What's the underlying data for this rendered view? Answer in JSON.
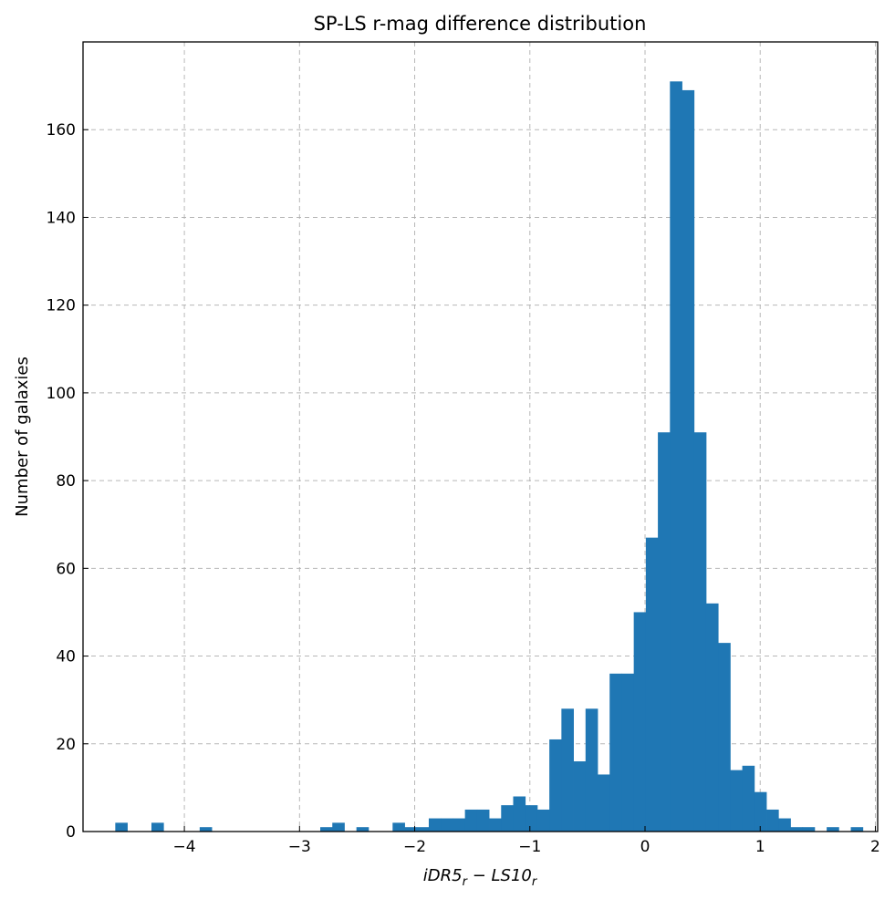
{
  "chart_data": {
    "type": "bar",
    "title": "SP-LS r-mag difference distribution",
    "xlabel": "iDR5_r − LS10_r",
    "xlabel_parts": {
      "a": "iDR5",
      "a_sub": "r",
      "op": " − ",
      "b": "LS10",
      "b_sub": "r"
    },
    "ylabel": "Number of galaxies",
    "xlim": [
      -4.88,
      2.02
    ],
    "ylim": [
      0,
      180
    ],
    "xticks": [
      -4,
      -3,
      -2,
      -1,
      0,
      1,
      2
    ],
    "xtick_labels": [
      "−4",
      "−3",
      "−2",
      "−1",
      "0",
      "1",
      "2"
    ],
    "yticks": [
      0,
      20,
      40,
      60,
      80,
      100,
      120,
      140,
      160
    ],
    "ytick_labels": [
      "0",
      "20",
      "40",
      "60",
      "80",
      "100",
      "120",
      "140",
      "160"
    ],
    "grid": true,
    "bin_start": -4.6,
    "bin_width": 0.1047,
    "counts": [
      2,
      0,
      0,
      2,
      0,
      0,
      0,
      1,
      0,
      0,
      0,
      0,
      0,
      0,
      0,
      0,
      0,
      1,
      2,
      0,
      1,
      0,
      0,
      2,
      1,
      1,
      3,
      3,
      3,
      5,
      5,
      3,
      6,
      8,
      6,
      5,
      21,
      28,
      16,
      28,
      13,
      36,
      36,
      50,
      67,
      91,
      171,
      169,
      91,
      52,
      43,
      14,
      15,
      9,
      5,
      3,
      1,
      1,
      0,
      1,
      0,
      1
    ]
  }
}
